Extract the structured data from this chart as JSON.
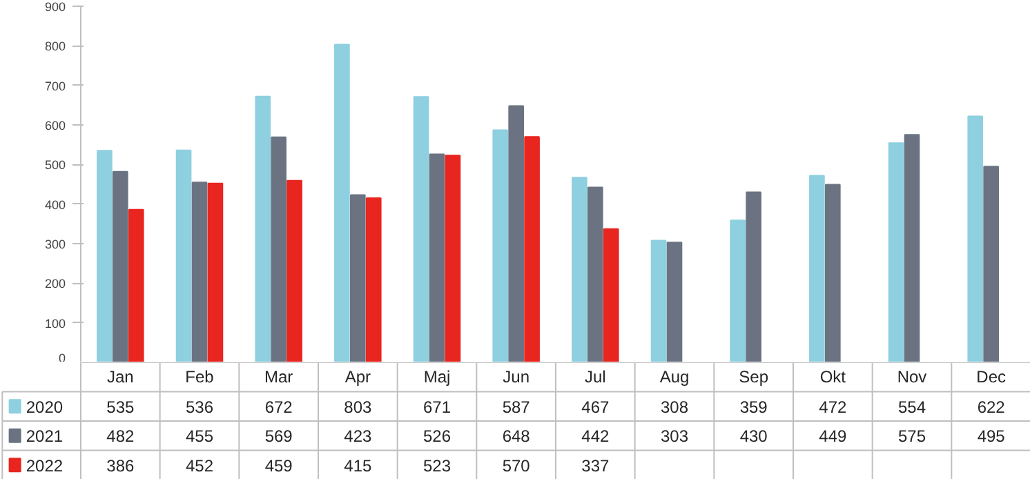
{
  "chart_data": {
    "type": "bar",
    "categories": [
      "Jan",
      "Feb",
      "Mar",
      "Apr",
      "Maj",
      "Jun",
      "Jul",
      "Aug",
      "Sep",
      "Okt",
      "Nov",
      "Dec"
    ],
    "series": [
      {
        "name": "2020",
        "color": "#8ecfe0",
        "values": [
          535,
          536,
          672,
          803,
          671,
          587,
          467,
          308,
          359,
          472,
          554,
          622
        ]
      },
      {
        "name": "2021",
        "color": "#6b7382",
        "values": [
          482,
          455,
          569,
          423,
          526,
          648,
          442,
          303,
          430,
          449,
          575,
          495
        ]
      },
      {
        "name": "2022",
        "color": "#e8251f",
        "values": [
          386,
          452,
          459,
          415,
          523,
          570,
          337,
          null,
          null,
          null,
          null,
          null
        ]
      }
    ],
    "ylim": [
      0,
      900
    ],
    "yticks": [
      0,
      100,
      200,
      300,
      400,
      500,
      600,
      700,
      800,
      900
    ],
    "grid": false,
    "data_labels": true,
    "legend": "bottom left"
  }
}
